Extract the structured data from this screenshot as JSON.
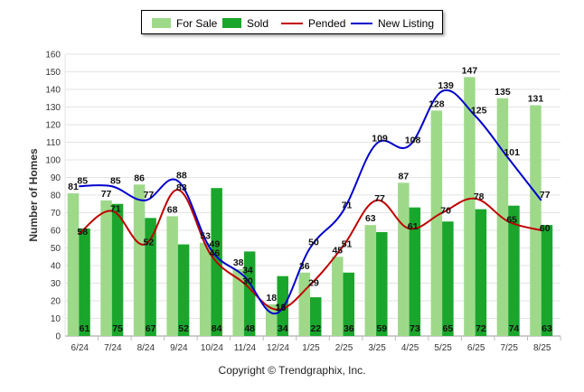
{
  "chart_data": {
    "type": "bar",
    "ylabel": "Number of Homes",
    "xlabel": "",
    "ylim": [
      0,
      160
    ],
    "ytick_step": 10,
    "grid": true,
    "legend_position": "top-center",
    "categories": [
      "6/24",
      "7/24",
      "8/24",
      "9/24",
      "10/24",
      "11/24",
      "12/24",
      "1/25",
      "2/25",
      "3/25",
      "4/25",
      "5/25",
      "6/25",
      "7/25",
      "8/25"
    ],
    "series": [
      {
        "name": "For Sale",
        "kind": "bar",
        "color": "#9ed98a",
        "values": [
          81,
          77,
          86,
          68,
          53,
          38,
          18,
          36,
          45,
          63,
          87,
          128,
          147,
          135,
          131
        ]
      },
      {
        "name": "Sold",
        "kind": "bar",
        "color": "#1aa62c",
        "values": [
          61,
          75,
          67,
          52,
          84,
          48,
          34,
          22,
          36,
          59,
          73,
          65,
          72,
          74,
          63
        ]
      },
      {
        "name": "Pended",
        "kind": "line",
        "color": "#c00000",
        "values": [
          58,
          71,
          52,
          83,
          46,
          30,
          15,
          29,
          51,
          77,
          61,
          70,
          78,
          65,
          60
        ]
      },
      {
        "name": "New Listing",
        "kind": "line",
        "color": "#0000cc",
        "values": [
          85,
          85,
          77,
          88,
          49,
          34,
          13,
          50,
          71,
          109,
          108,
          139,
          125,
          101,
          77
        ]
      }
    ]
  },
  "copyright": "Copyright © Trendgraphix, Inc."
}
